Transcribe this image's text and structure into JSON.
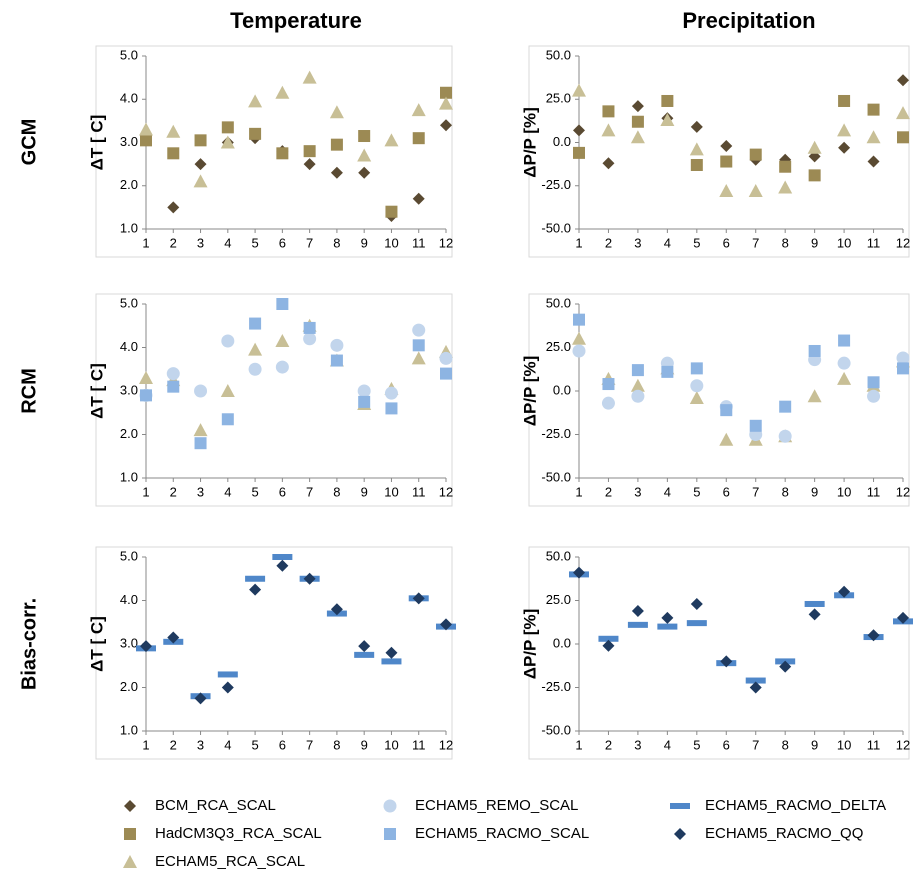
{
  "column_titles": [
    "Temperature",
    "Precipitation"
  ],
  "row_labels": [
    "GCM",
    "RCM",
    "Bias-corr."
  ],
  "chart_data": [
    {
      "type": "scatter",
      "ylabel": "ΔT [ C]",
      "x": [
        1,
        2,
        3,
        4,
        5,
        6,
        7,
        8,
        9,
        10,
        11,
        12
      ],
      "xlim": [
        1,
        12
      ],
      "xticks": [
        1,
        2,
        3,
        4,
        5,
        6,
        7,
        8,
        9,
        10,
        11,
        12
      ],
      "ylim": [
        1,
        5
      ],
      "yticks": [
        {
          "value": 1,
          "label": "1.0"
        },
        {
          "value": 2,
          "label": "2.0"
        },
        {
          "value": 3,
          "label": "3.0"
        },
        {
          "value": 4,
          "label": "4.0"
        },
        {
          "value": 5,
          "label": "5.0"
        }
      ],
      "series": [
        {
          "name": "BCM_RCA_SCAL",
          "color": "#5a4a32",
          "marker": "diamond",
          "values": [
            3.05,
            1.5,
            2.5,
            3.0,
            3.1,
            2.8,
            2.5,
            2.3,
            2.3,
            1.3,
            1.7,
            3.4
          ]
        },
        {
          "name": "HadCM3Q3_RCA_SCAL",
          "color": "#9c8a54",
          "marker": "square",
          "values": [
            3.05,
            2.75,
            3.05,
            3.35,
            3.2,
            2.75,
            2.8,
            2.95,
            3.15,
            1.4,
            3.1,
            4.15
          ]
        },
        {
          "name": "ECHAM5_RCA_SCAL",
          "color": "#c8bf96",
          "marker": "triangle",
          "values": [
            3.3,
            3.25,
            2.1,
            3.0,
            3.95,
            4.15,
            4.5,
            3.7,
            2.7,
            3.05,
            3.75,
            3.9
          ]
        }
      ]
    },
    {
      "type": "scatter",
      "ylabel": "ΔP/P [%]",
      "x": [
        1,
        2,
        3,
        4,
        5,
        6,
        7,
        8,
        9,
        10,
        11,
        12
      ],
      "xlim": [
        1,
        12
      ],
      "xticks": [
        1,
        2,
        3,
        4,
        5,
        6,
        7,
        8,
        9,
        10,
        11,
        12
      ],
      "ylim": [
        -50,
        50
      ],
      "yticks": [
        {
          "value": -50,
          "label": "-50.0"
        },
        {
          "value": -25,
          "label": "-25.0"
        },
        {
          "value": 0,
          "label": "0.0"
        },
        {
          "value": 25,
          "label": "25.0"
        },
        {
          "value": 50,
          "label": "50.0"
        }
      ],
      "series": [
        {
          "name": "BCM_RCA_SCAL",
          "color": "#5a4a32",
          "marker": "diamond",
          "values": [
            7,
            -12,
            21,
            14,
            9,
            -2,
            -10,
            -10,
            -8,
            -3,
            -11,
            36
          ]
        },
        {
          "name": "HadCM3Q3_RCA_SCAL",
          "color": "#9c8a54",
          "marker": "square",
          "values": [
            -6,
            18,
            12,
            24,
            -13,
            -11,
            -7,
            -14,
            -19,
            24,
            19,
            3
          ]
        },
        {
          "name": "ECHAM5_RCA_SCAL",
          "color": "#c8bf96",
          "marker": "triangle",
          "values": [
            30,
            7,
            3,
            13,
            -4,
            -28,
            -28,
            -26,
            -3,
            7,
            3,
            17
          ]
        }
      ]
    },
    {
      "type": "scatter",
      "ylabel": "ΔT [ C]",
      "x": [
        1,
        2,
        3,
        4,
        5,
        6,
        7,
        8,
        9,
        10,
        11,
        12
      ],
      "xlim": [
        1,
        12
      ],
      "xticks": [
        1,
        2,
        3,
        4,
        5,
        6,
        7,
        8,
        9,
        10,
        11,
        12
      ],
      "ylim": [
        1,
        5
      ],
      "yticks": [
        {
          "value": 1,
          "label": "1.0"
        },
        {
          "value": 2,
          "label": "2.0"
        },
        {
          "value": 3,
          "label": "3.0"
        },
        {
          "value": 4,
          "label": "4.0"
        },
        {
          "value": 5,
          "label": "5.0"
        }
      ],
      "series": [
        {
          "name": "ECHAM5_RCA_SCAL",
          "color": "#c8bf96",
          "marker": "triangle",
          "values": [
            3.3,
            3.25,
            2.1,
            3.0,
            3.95,
            4.15,
            4.5,
            3.7,
            2.7,
            3.05,
            3.75,
            3.9
          ]
        },
        {
          "name": "ECHAM5_REMO_SCAL",
          "color": "#c2d5ec",
          "marker": "circle",
          "values": [
            2.9,
            3.4,
            3.0,
            4.15,
            3.5,
            3.55,
            4.2,
            4.05,
            3.0,
            2.95,
            4.4,
            3.75
          ]
        },
        {
          "name": "ECHAM5_RACMO_SCAL",
          "color": "#8db4e2",
          "marker": "square",
          "values": [
            2.9,
            3.1,
            1.8,
            2.35,
            4.55,
            5.0,
            4.45,
            3.7,
            2.75,
            2.6,
            4.05,
            3.4
          ]
        }
      ]
    },
    {
      "type": "scatter",
      "ylabel": "ΔP/P [%]",
      "x": [
        1,
        2,
        3,
        4,
        5,
        6,
        7,
        8,
        9,
        10,
        11,
        12
      ],
      "xlim": [
        1,
        12
      ],
      "xticks": [
        1,
        2,
        3,
        4,
        5,
        6,
        7,
        8,
        9,
        10,
        11,
        12
      ],
      "ylim": [
        -50,
        50
      ],
      "yticks": [
        {
          "value": -50,
          "label": "-50.0"
        },
        {
          "value": -25,
          "label": "-25.0"
        },
        {
          "value": 0,
          "label": "0.0"
        },
        {
          "value": 25,
          "label": "25.0"
        },
        {
          "value": 50,
          "label": "50.0"
        }
      ],
      "series": [
        {
          "name": "ECHAM5_RCA_SCAL",
          "color": "#c8bf96",
          "marker": "triangle",
          "values": [
            30,
            7,
            3,
            13,
            -4,
            -28,
            -28,
            -26,
            -3,
            7,
            3,
            17
          ]
        },
        {
          "name": "ECHAM5_REMO_SCAL",
          "color": "#c2d5ec",
          "marker": "circle",
          "values": [
            23,
            -7,
            -3,
            16,
            3,
            -9,
            -25,
            -26,
            18,
            16,
            -3,
            19
          ]
        },
        {
          "name": "ECHAM5_RACMO_SCAL",
          "color": "#8db4e2",
          "marker": "square",
          "values": [
            41,
            4,
            12,
            11,
            13,
            -11,
            -20,
            -9,
            23,
            29,
            5,
            13
          ]
        }
      ]
    },
    {
      "type": "scatter",
      "ylabel": "ΔT [ C]",
      "x": [
        1,
        2,
        3,
        4,
        5,
        6,
        7,
        8,
        9,
        10,
        11,
        12
      ],
      "xlim": [
        1,
        12
      ],
      "xticks": [
        1,
        2,
        3,
        4,
        5,
        6,
        7,
        8,
        9,
        10,
        11,
        12
      ],
      "ylim": [
        1,
        5
      ],
      "yticks": [
        {
          "value": 1,
          "label": "1.0"
        },
        {
          "value": 2,
          "label": "2.0"
        },
        {
          "value": 3,
          "label": "3.0"
        },
        {
          "value": 4,
          "label": "4.0"
        },
        {
          "value": 5,
          "label": "5.0"
        }
      ],
      "series": [
        {
          "name": "ECHAM5_RACMO_DELTA",
          "color": "#4f87c9",
          "marker": "dash",
          "values": [
            2.9,
            3.05,
            1.8,
            2.3,
            4.5,
            5.0,
            4.5,
            3.7,
            2.75,
            2.6,
            4.05,
            3.4
          ]
        },
        {
          "name": "ECHAM5_RACMO_QQ",
          "color": "#1f3a5f",
          "marker": "diamond",
          "values": [
            2.95,
            3.15,
            1.75,
            2.0,
            4.25,
            4.8,
            4.5,
            3.8,
            2.95,
            2.8,
            4.05,
            3.45
          ]
        }
      ]
    },
    {
      "type": "scatter",
      "ylabel": "ΔP/P [%]",
      "x": [
        1,
        2,
        3,
        4,
        5,
        6,
        7,
        8,
        9,
        10,
        11,
        12
      ],
      "xlim": [
        1,
        12
      ],
      "xticks": [
        1,
        2,
        3,
        4,
        5,
        6,
        7,
        8,
        9,
        10,
        11,
        12
      ],
      "ylim": [
        -50,
        50
      ],
      "yticks": [
        {
          "value": -50,
          "label": "-50.0"
        },
        {
          "value": -25,
          "label": "-25.0"
        },
        {
          "value": 0,
          "label": "0.0"
        },
        {
          "value": 25,
          "label": "25.0"
        },
        {
          "value": 50,
          "label": "50.0"
        }
      ],
      "series": [
        {
          "name": "ECHAM5_RACMO_DELTA",
          "color": "#4f87c9",
          "marker": "dash",
          "values": [
            40,
            3,
            11,
            10,
            12,
            -11,
            -21,
            -10,
            23,
            28,
            4,
            13
          ]
        },
        {
          "name": "ECHAM5_RACMO_QQ",
          "color": "#1f3a5f",
          "marker": "diamond",
          "values": [
            41,
            -1,
            19,
            15,
            23,
            -10,
            -25,
            -13,
            17,
            30,
            5,
            15
          ]
        }
      ]
    }
  ]
}
